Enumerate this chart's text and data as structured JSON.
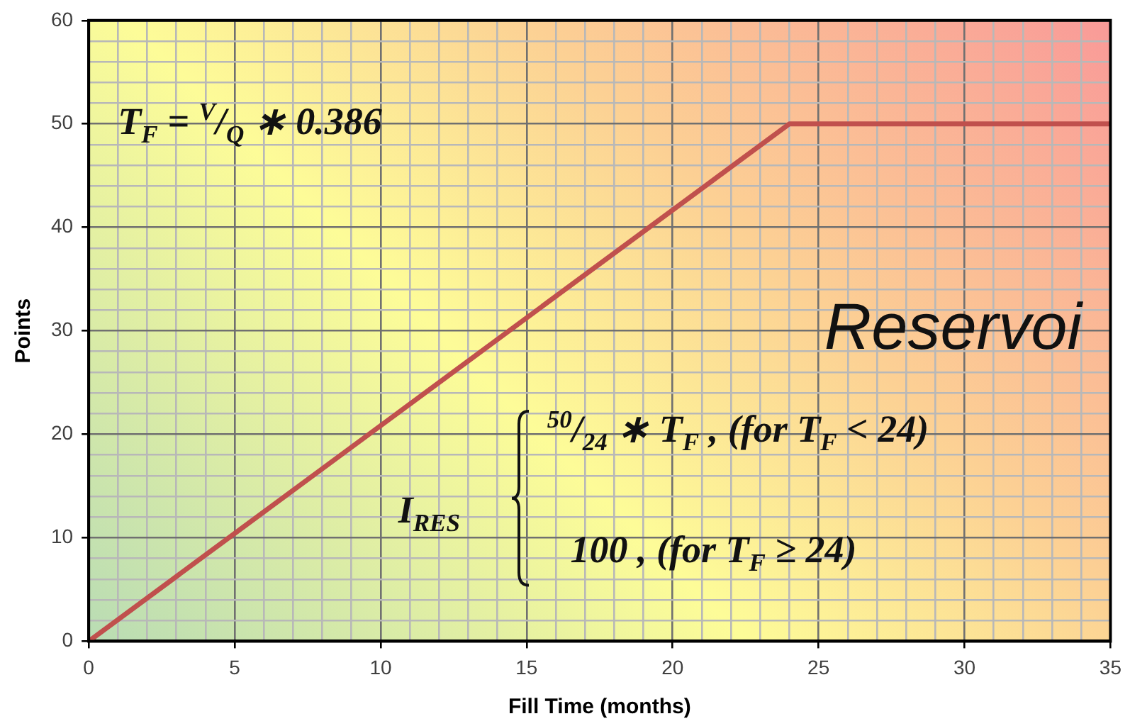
{
  "chart_data": {
    "type": "line",
    "xlabel": "Fill Time (months)",
    "ylabel": "Points",
    "series": [
      {
        "color": "#c0504d",
        "x": [
          0,
          24,
          35
        ],
        "values": [
          0,
          50,
          50
        ]
      }
    ],
    "xlim": [
      0,
      35
    ],
    "ylim": [
      0,
      60
    ],
    "xticks": [
      0,
      {
        "value": 1,
        "label": null
      },
      {
        "value": 2,
        "label": null
      },
      {
        "value": 3,
        "label": null
      },
      {
        "value": 4,
        "label": null
      },
      5,
      {
        "value": 6,
        "label": null
      },
      {
        "value": 7,
        "label": null
      },
      {
        "value": 8,
        "label": null
      },
      {
        "value": 9,
        "label": null
      },
      10,
      {
        "value": 11,
        "label": null
      },
      {
        "value": 12,
        "label": null
      },
      {
        "value": 13,
        "label": null
      },
      {
        "value": 14,
        "label": null
      },
      15,
      {
        "value": 16,
        "label": null
      },
      {
        "value": 17,
        "label": null
      },
      {
        "value": 18,
        "label": null
      },
      {
        "value": 19,
        "label": null
      },
      20,
      {
        "value": 21,
        "label": null
      },
      {
        "value": 22,
        "label": null
      },
      {
        "value": 23,
        "label": null
      },
      {
        "value": 24,
        "label": null
      },
      25,
      {
        "value": 26,
        "label": null
      },
      {
        "value": 27,
        "label": null
      },
      {
        "value": 28,
        "label": null
      },
      {
        "value": 29,
        "label": null
      },
      30,
      {
        "value": 31,
        "label": null
      },
      {
        "value": 32,
        "label": null
      },
      {
        "value": 33,
        "label": null
      },
      {
        "value": 34,
        "label": null
      },
      35
    ],
    "yticks": [
      0,
      {
        "value": 2,
        "label": null
      },
      {
        "value": 4,
        "label": null
      },
      {
        "value": 6,
        "label": null
      },
      {
        "value": 8,
        "label": null
      },
      10,
      {
        "value": 12,
        "label": null
      },
      {
        "value": 14,
        "label": null
      },
      {
        "value": 16,
        "label": null
      },
      {
        "value": 18,
        "label": null
      },
      20,
      {
        "value": 22,
        "label": null
      },
      {
        "value": 24,
        "label": null
      },
      {
        "value": 26,
        "label": null
      },
      {
        "value": 28,
        "label": null
      },
      30,
      {
        "value": 32,
        "label": null
      },
      {
        "value": 34,
        "label": null
      },
      {
        "value": 36,
        "label": null
      },
      {
        "value": 38,
        "label": null
      },
      40,
      {
        "value": 42,
        "label": null
      },
      {
        "value": 44,
        "label": null
      },
      {
        "value": 46,
        "label": null
      },
      {
        "value": 48,
        "label": null
      },
      50,
      {
        "value": 52,
        "label": null
      },
      {
        "value": 54,
        "label": null
      },
      {
        "value": 56,
        "label": null
      },
      {
        "value": 58,
        "label": null
      },
      60
    ],
    "grid": true,
    "legend": false,
    "marker": "none",
    "line_style": "solid",
    "annotations": [
      "T$_{F}$ = $^{V}$/$_{Q}$ ∗ 0.386",
      "I$_{RES}$",
      "$^{50}$/$_{24}$ ∗ T$_{F}$ , (for T$_{F}$ < 24)",
      "100 , (for T$_{F}$ ≥ 24)",
      "Reservoi"
    ]
  }
}
